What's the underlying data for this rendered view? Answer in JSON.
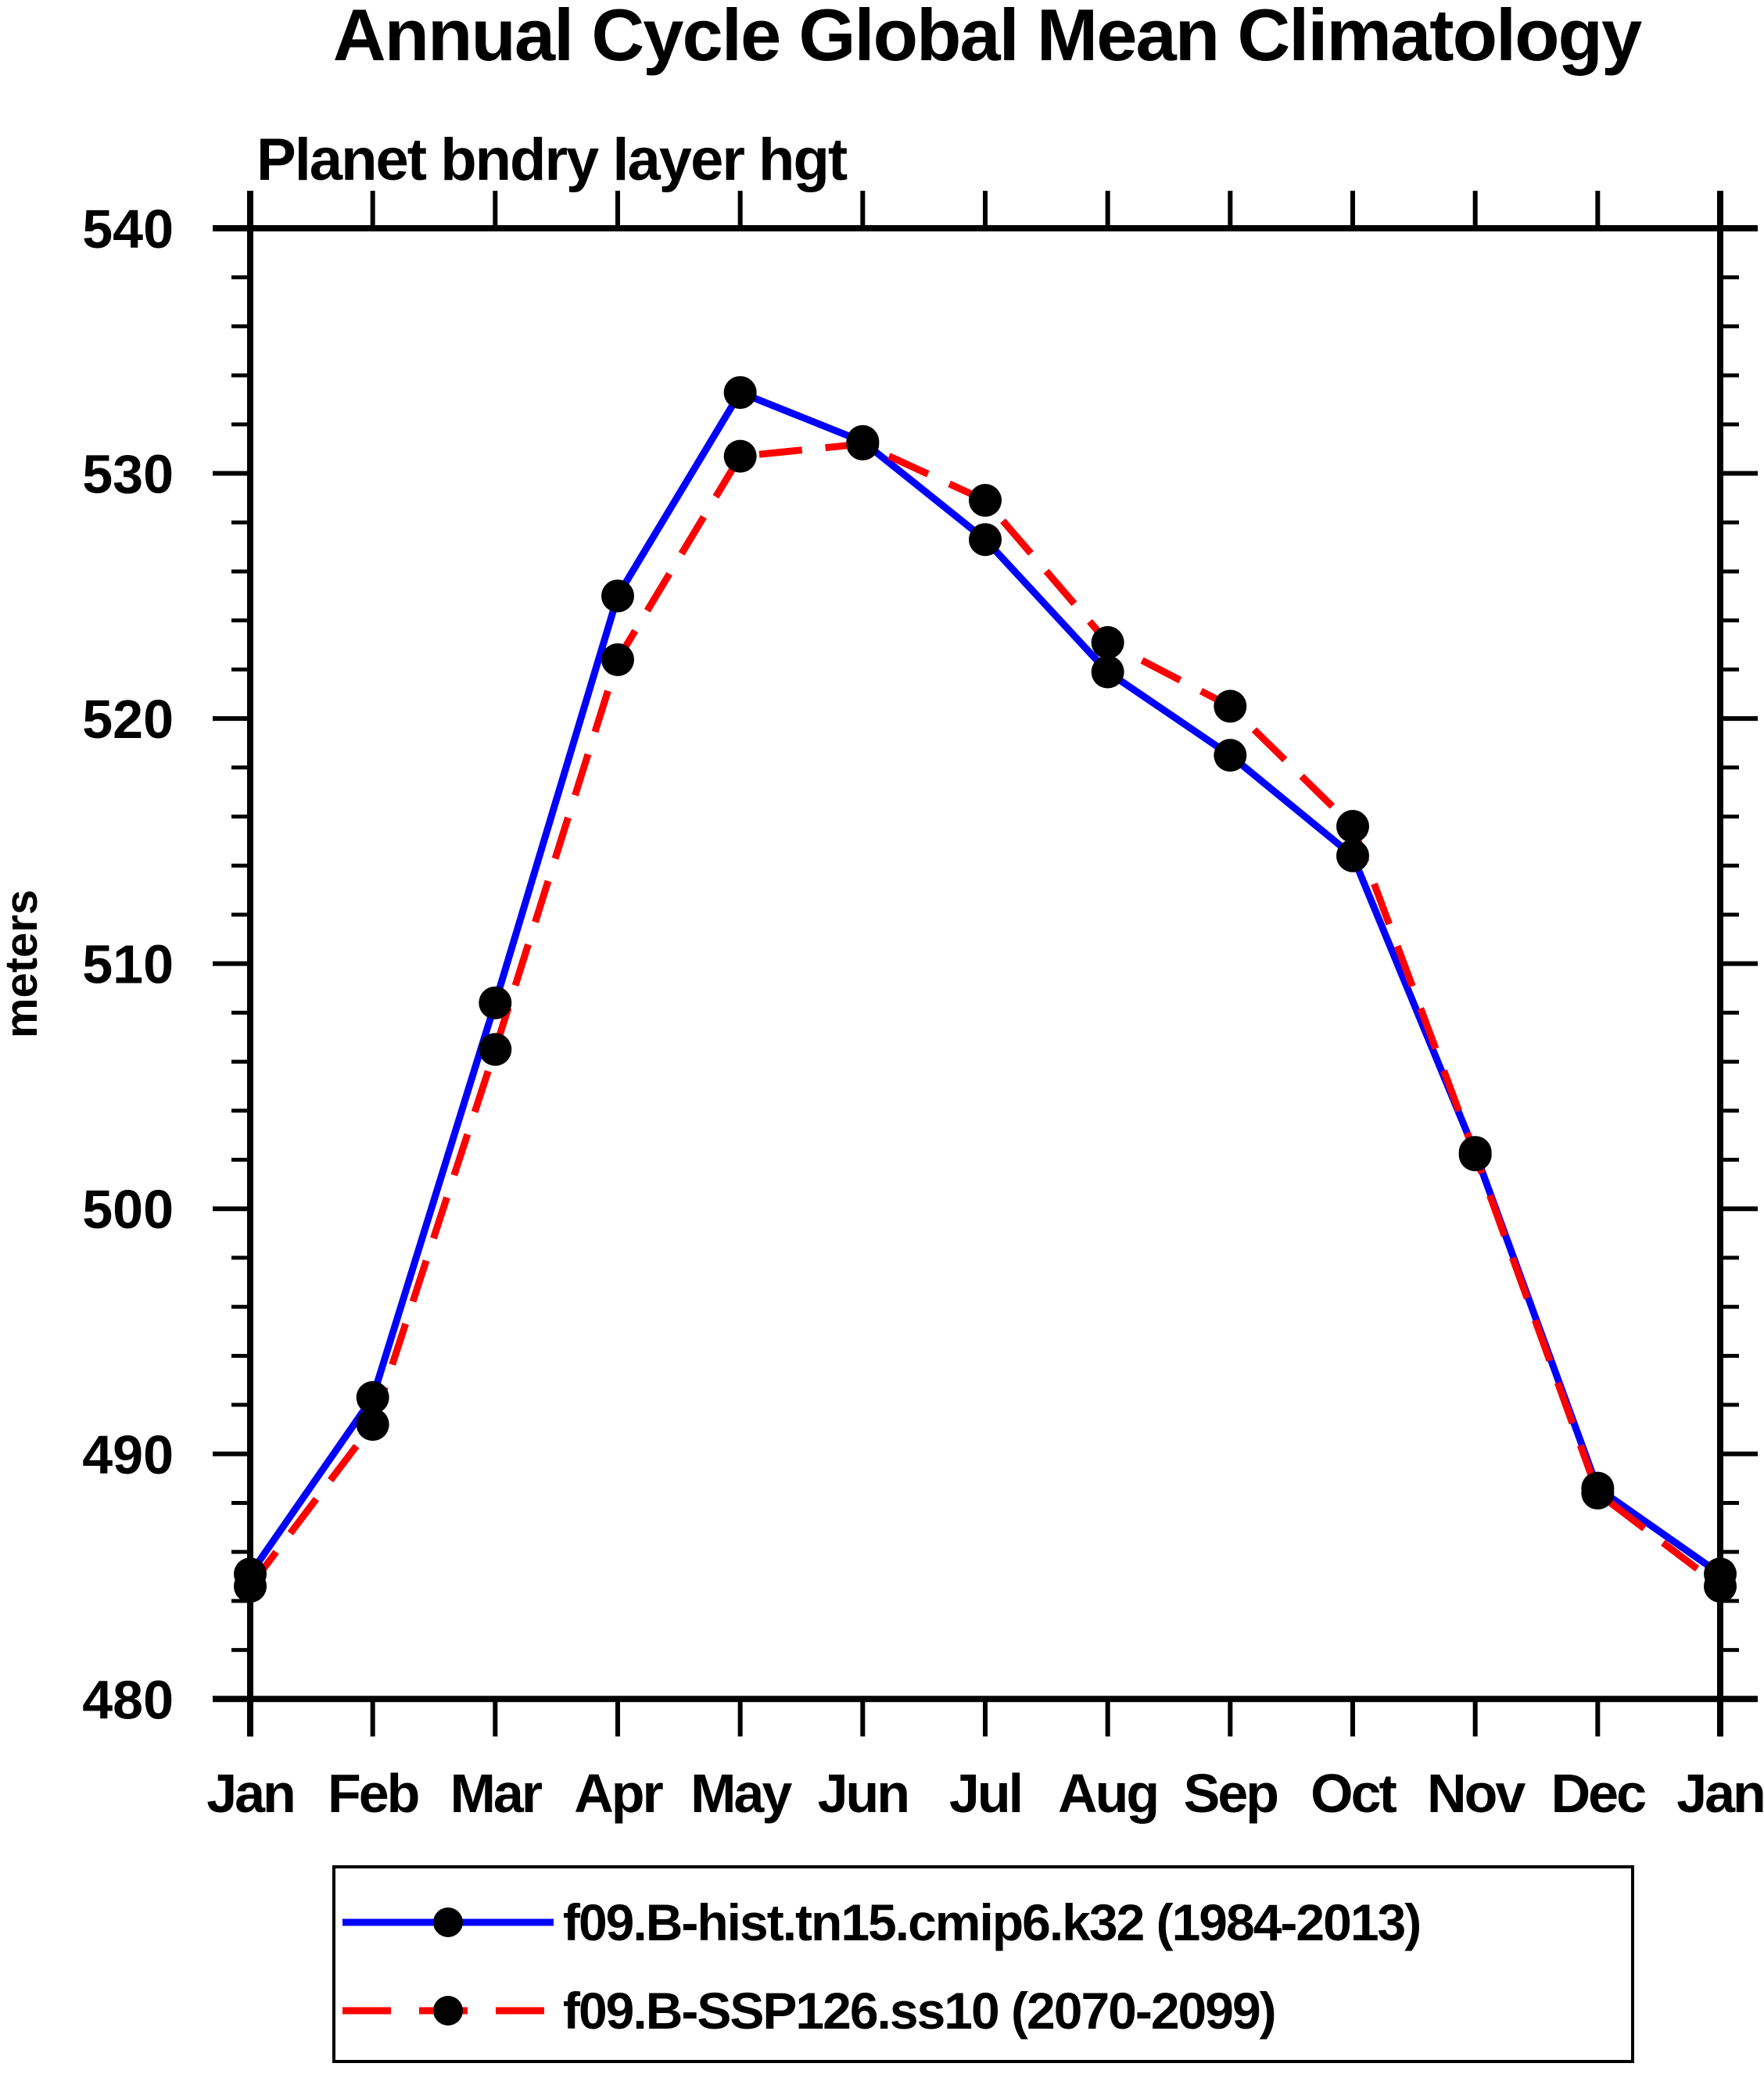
{
  "title": "Annual Cycle Global Mean Climatology",
  "subtitle": "Planet bndry layer hgt",
  "ylabel": "meters",
  "colors": {
    "hist_line": "#0000ff",
    "ssp_line": "#ff0000",
    "marker": "#000000",
    "axis": "#000000",
    "background": "#ffffff"
  },
  "chart_data": {
    "type": "line",
    "categories": [
      "Jan",
      "Feb",
      "Mar",
      "Apr",
      "May",
      "Jun",
      "Jul",
      "Aug",
      "Sep",
      "Oct",
      "Nov",
      "Dec",
      "Jan"
    ],
    "xlabel": "",
    "ylabel": "meters",
    "ylim": [
      480,
      540
    ],
    "ytick_major": [
      480,
      490,
      500,
      510,
      520,
      530,
      540
    ],
    "ytick_minor_step": 2,
    "grid": false,
    "legend_position": "bottom",
    "series": [
      {
        "name": "f09.B-hist.tn15.cmip6.k32 (1984-2013)",
        "color": "#0000ff",
        "line_style": "solid",
        "marker": "circle",
        "marker_color": "#000000",
        "values": [
          485.1,
          492.3,
          508.4,
          525.0,
          533.3,
          531.3,
          527.3,
          521.9,
          518.5,
          514.4,
          502.3,
          488.6,
          485.1
        ]
      },
      {
        "name": "f09.B-SSP126.ss10 (2070-2099)",
        "color": "#ff0000",
        "line_style": "dashed",
        "marker": "circle",
        "marker_color": "#000000",
        "values": [
          484.6,
          491.2,
          506.5,
          522.4,
          530.7,
          531.2,
          528.9,
          523.1,
          520.5,
          515.6,
          502.2,
          488.4,
          484.6
        ]
      }
    ]
  }
}
